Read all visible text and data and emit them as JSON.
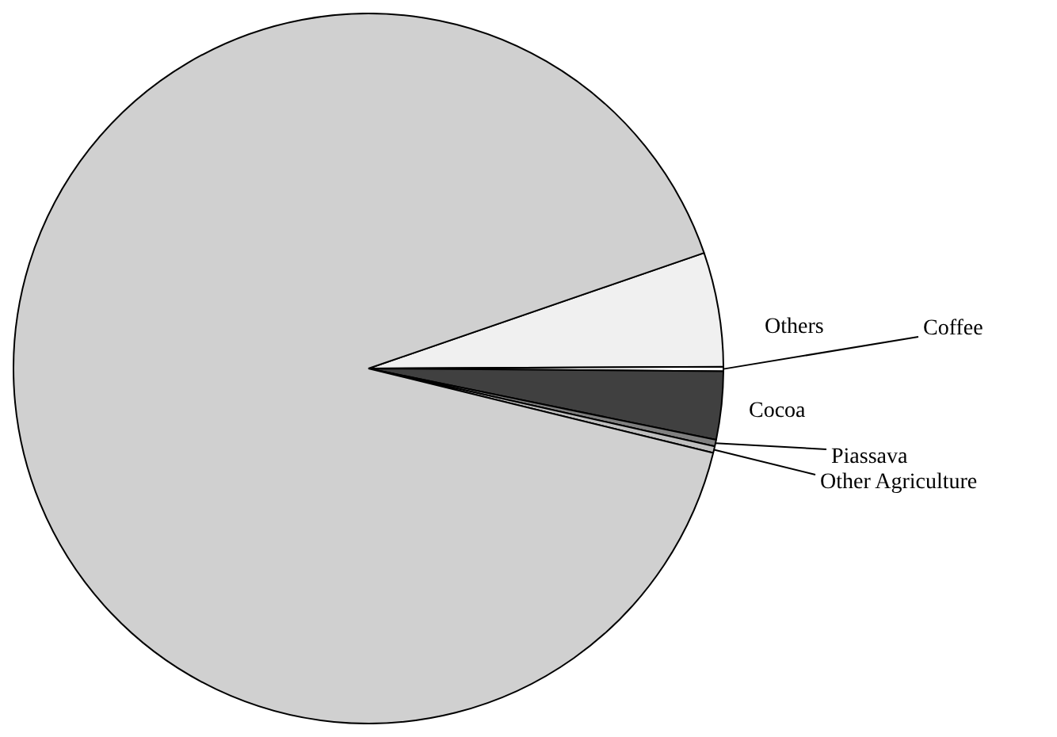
{
  "chart_data": {
    "type": "pie",
    "categories": [
      "Others",
      "Coffee",
      "Cocoa",
      "Piassava",
      "Other Agriculture",
      null
    ],
    "values": [
      5.2,
      0.2,
      3.1,
      0.3,
      0.3,
      90.9
    ],
    "colors": [
      "#f0f0f0",
      "#ffffff",
      "#404040",
      "#808080",
      "#bfbfbf",
      "#d0d0d0"
    ],
    "legend": false
  }
}
